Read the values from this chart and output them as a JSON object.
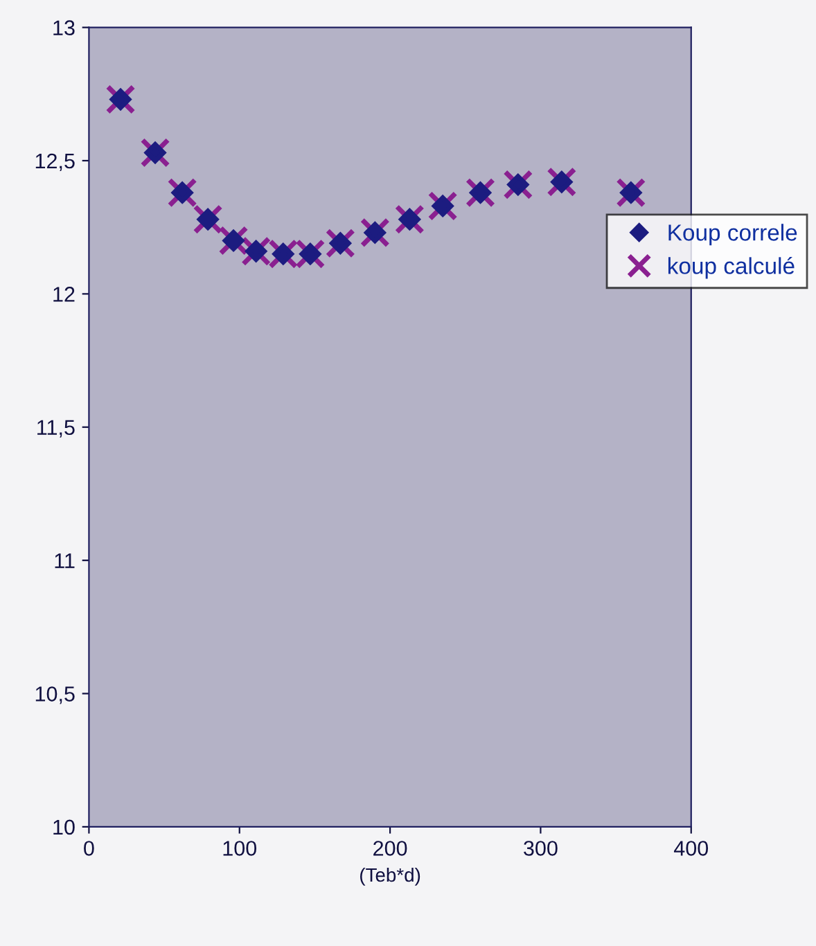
{
  "chart_data": {
    "type": "scatter",
    "xlabel": "(Teb*d)",
    "x": [
      21,
      44,
      62,
      79,
      96,
      111,
      129,
      147,
      167,
      190,
      213,
      235,
      260,
      285,
      314,
      360
    ],
    "series": [
      {
        "name": "Koup correle",
        "color": "#1c1c80",
        "marker": "diamond",
        "values": [
          12.73,
          12.53,
          12.38,
          12.28,
          12.2,
          12.16,
          12.15,
          12.15,
          12.19,
          12.23,
          12.28,
          12.33,
          12.38,
          12.41,
          12.42,
          12.38
        ]
      },
      {
        "name": "koup calculé",
        "color": "#8a2090",
        "marker": "cross",
        "values": [
          12.73,
          12.53,
          12.38,
          12.28,
          12.2,
          12.16,
          12.15,
          12.15,
          12.19,
          12.23,
          12.28,
          12.33,
          12.38,
          12.41,
          12.42,
          12.38
        ]
      }
    ],
    "xlim": [
      0,
      400
    ],
    "xticks": [
      0,
      100,
      200,
      300,
      400
    ],
    "ylim": [
      10,
      13
    ],
    "yticks": [
      10,
      {
        "value": 10.5,
        "label": "10,5"
      },
      11,
      {
        "value": 11.5,
        "label": "11,5"
      },
      12,
      {
        "value": 12.5,
        "label": "12,5"
      },
      13
    ],
    "grid": false,
    "legend": "right"
  }
}
